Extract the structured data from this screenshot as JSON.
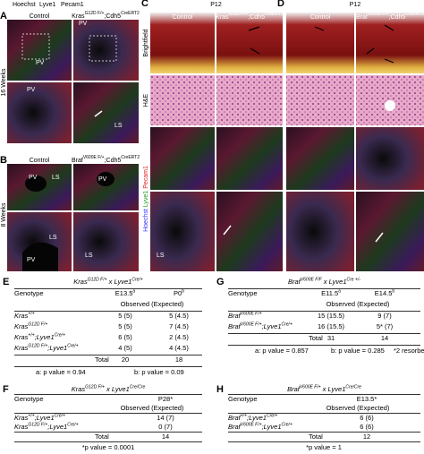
{
  "top": {
    "legend": [
      "Hoechst",
      "Lyve1",
      "Pecam1"
    ],
    "a": {
      "letter": "A",
      "col1": "Control",
      "col2": [
        {
          "t": "Kras"
        },
        {
          "sup": "G12D F/+"
        },
        {
          "t": ";Cdh5"
        },
        {
          "sup": "CreERT2"
        }
      ],
      "row": "16 Weeks",
      "labels": [
        "PV",
        "PV",
        "PV",
        "LS"
      ]
    },
    "b": {
      "letter": "B",
      "col1": "Control",
      "col2": [
        {
          "t": "Braf"
        },
        {
          "sup": "V600E F/+"
        },
        {
          "t": ";Cdh5"
        },
        {
          "sup": "CreERT2"
        }
      ],
      "row": "8 Weeks",
      "labels": [
        "PV",
        "PV",
        "LS",
        "LS",
        "PV",
        "LS"
      ]
    },
    "c": {
      "letter": "C",
      "stage": "P12",
      "col1": "Control",
      "col2": [
        {
          "t": "Kras"
        },
        {
          "sup": "G12D F/+"
        },
        {
          "t": ";Cdh5"
        },
        {
          "sup": "CreERT2"
        }
      ],
      "rows": [
        "Brightfield",
        "H&E"
      ],
      "labels": [
        "LS"
      ]
    },
    "d": {
      "letter": "D",
      "stage": "P12",
      "col1": "Control",
      "col2": [
        {
          "t": "Braf"
        },
        {
          "sup": "V600E F/+"
        },
        {
          "t": ";Cdh5"
        },
        {
          "sup": "CreERT2"
        }
      ]
    }
  },
  "tables": [
    {
      "letter": "E",
      "title": [
        {
          "t": "Kras"
        },
        {
          "sup": "G12D F/+"
        },
        {
          "t": " x "
        },
        {
          "t": "Lyve1"
        },
        {
          "sup": "Cre/+"
        }
      ],
      "header": [
        "Genotype",
        [
          {
            "t": "E13.5"
          },
          {
            "sup": "a"
          }
        ],
        [
          {
            "t": "P0"
          },
          {
            "sup": "b"
          }
        ]
      ],
      "subheader": "Observed (Expected)",
      "rows": [
        [
          [
            {
              "t": "Kras"
            },
            {
              "sup": "+/+"
            }
          ],
          "5 (5)",
          "5 (4.5)"
        ],
        [
          [
            {
              "t": "Kras"
            },
            {
              "sup": "G12D F/+"
            }
          ],
          "5 (5)",
          "7 (4.5)"
        ],
        [
          [
            {
              "t": "Kras"
            },
            {
              "sup": "+/+"
            },
            {
              "t": ";Lyve1"
            },
            {
              "sup": "Cre/+"
            }
          ],
          "6 (5)",
          "2 (4.5)"
        ],
        [
          [
            {
              "t": "Kras"
            },
            {
              "sup": "G12D F/+"
            },
            {
              "t": ";Lyve1"
            },
            {
              "sup": "Cre/+"
            }
          ],
          "4 (5)",
          "4 (4.5)"
        ]
      ],
      "total": [
        "Total",
        "20",
        "18"
      ],
      "notes": [
        "a: p value = 0.94",
        "b: p value = 0.09"
      ]
    },
    {
      "letter": "F",
      "title": [
        {
          "t": "Kras"
        },
        {
          "sup": "G12D F/+"
        },
        {
          "t": " x "
        },
        {
          "t": "Lyve1"
        },
        {
          "sup": "Cre/Cre"
        }
      ],
      "header": [
        "Genotype",
        "P28*"
      ],
      "subheader": "Observed (Expected)",
      "rows": [
        [
          [
            {
              "t": "Kras"
            },
            {
              "sup": "+/+"
            },
            {
              "t": ";Lyve1"
            },
            {
              "sup": "Cre/+"
            }
          ],
          "14 (7)"
        ],
        [
          [
            {
              "t": "Kras"
            },
            {
              "sup": "G12D F/+"
            },
            {
              "t": ";Lyve1"
            },
            {
              "sup": "Cre/+"
            }
          ],
          "0 (7)"
        ]
      ],
      "total": [
        "Total",
        "14"
      ],
      "notes": [
        "*p value = 0.0001"
      ]
    },
    {
      "letter": "G",
      "title": [
        {
          "t": "Braf"
        },
        {
          "sup": "V600E F/F"
        },
        {
          "t": " x "
        },
        {
          "t": "Lyve1"
        },
        {
          "sup": "Cre +/-"
        }
      ],
      "header": [
        "Genotype",
        [
          {
            "t": "E11.5"
          },
          {
            "sup": "a"
          }
        ],
        [
          {
            "t": "E14.5"
          },
          {
            "sup": "b"
          }
        ]
      ],
      "subheader": "Observed (Expected)",
      "rows": [
        [
          [
            {
              "t": "Braf"
            },
            {
              "sup": "V600E F/+"
            }
          ],
          "15 (15.5)",
          "9 (7)"
        ],
        [
          [
            {
              "t": "Braf"
            },
            {
              "sup": "V600E F/+"
            },
            {
              "t": ";Lyve1"
            },
            {
              "sup": "Cre/+"
            }
          ],
          "16 (15.5)",
          "5* (7)"
        ]
      ],
      "total": [
        "Total",
        "31",
        "14"
      ],
      "notes": [
        "a: p value = 0.857",
        "b: p value = 0.285",
        "*2 resorbed"
      ]
    },
    {
      "letter": "H",
      "title": [
        {
          "t": "Braf"
        },
        {
          "sup": "V600E F/+"
        },
        {
          "t": " x "
        },
        {
          "t": "Lyve1"
        },
        {
          "sup": "Cre/Cre"
        }
      ],
      "header": [
        "Genotype",
        "E13.5*"
      ],
      "subheader": "Observed (Expected)",
      "rows": [
        [
          [
            {
              "t": "Braf"
            },
            {
              "sup": "+/+"
            },
            {
              "t": ";Lyve1"
            },
            {
              "sup": "Cre/+"
            }
          ],
          "6 (6)"
        ],
        [
          [
            {
              "t": "Braf"
            },
            {
              "sup": "V600E F/+"
            },
            {
              "t": ";Lyve1"
            },
            {
              "sup": "Cre/+"
            }
          ],
          "6 (6)"
        ]
      ],
      "total": [
        "Total",
        "12"
      ],
      "notes": [
        "*p value = 1"
      ]
    }
  ]
}
